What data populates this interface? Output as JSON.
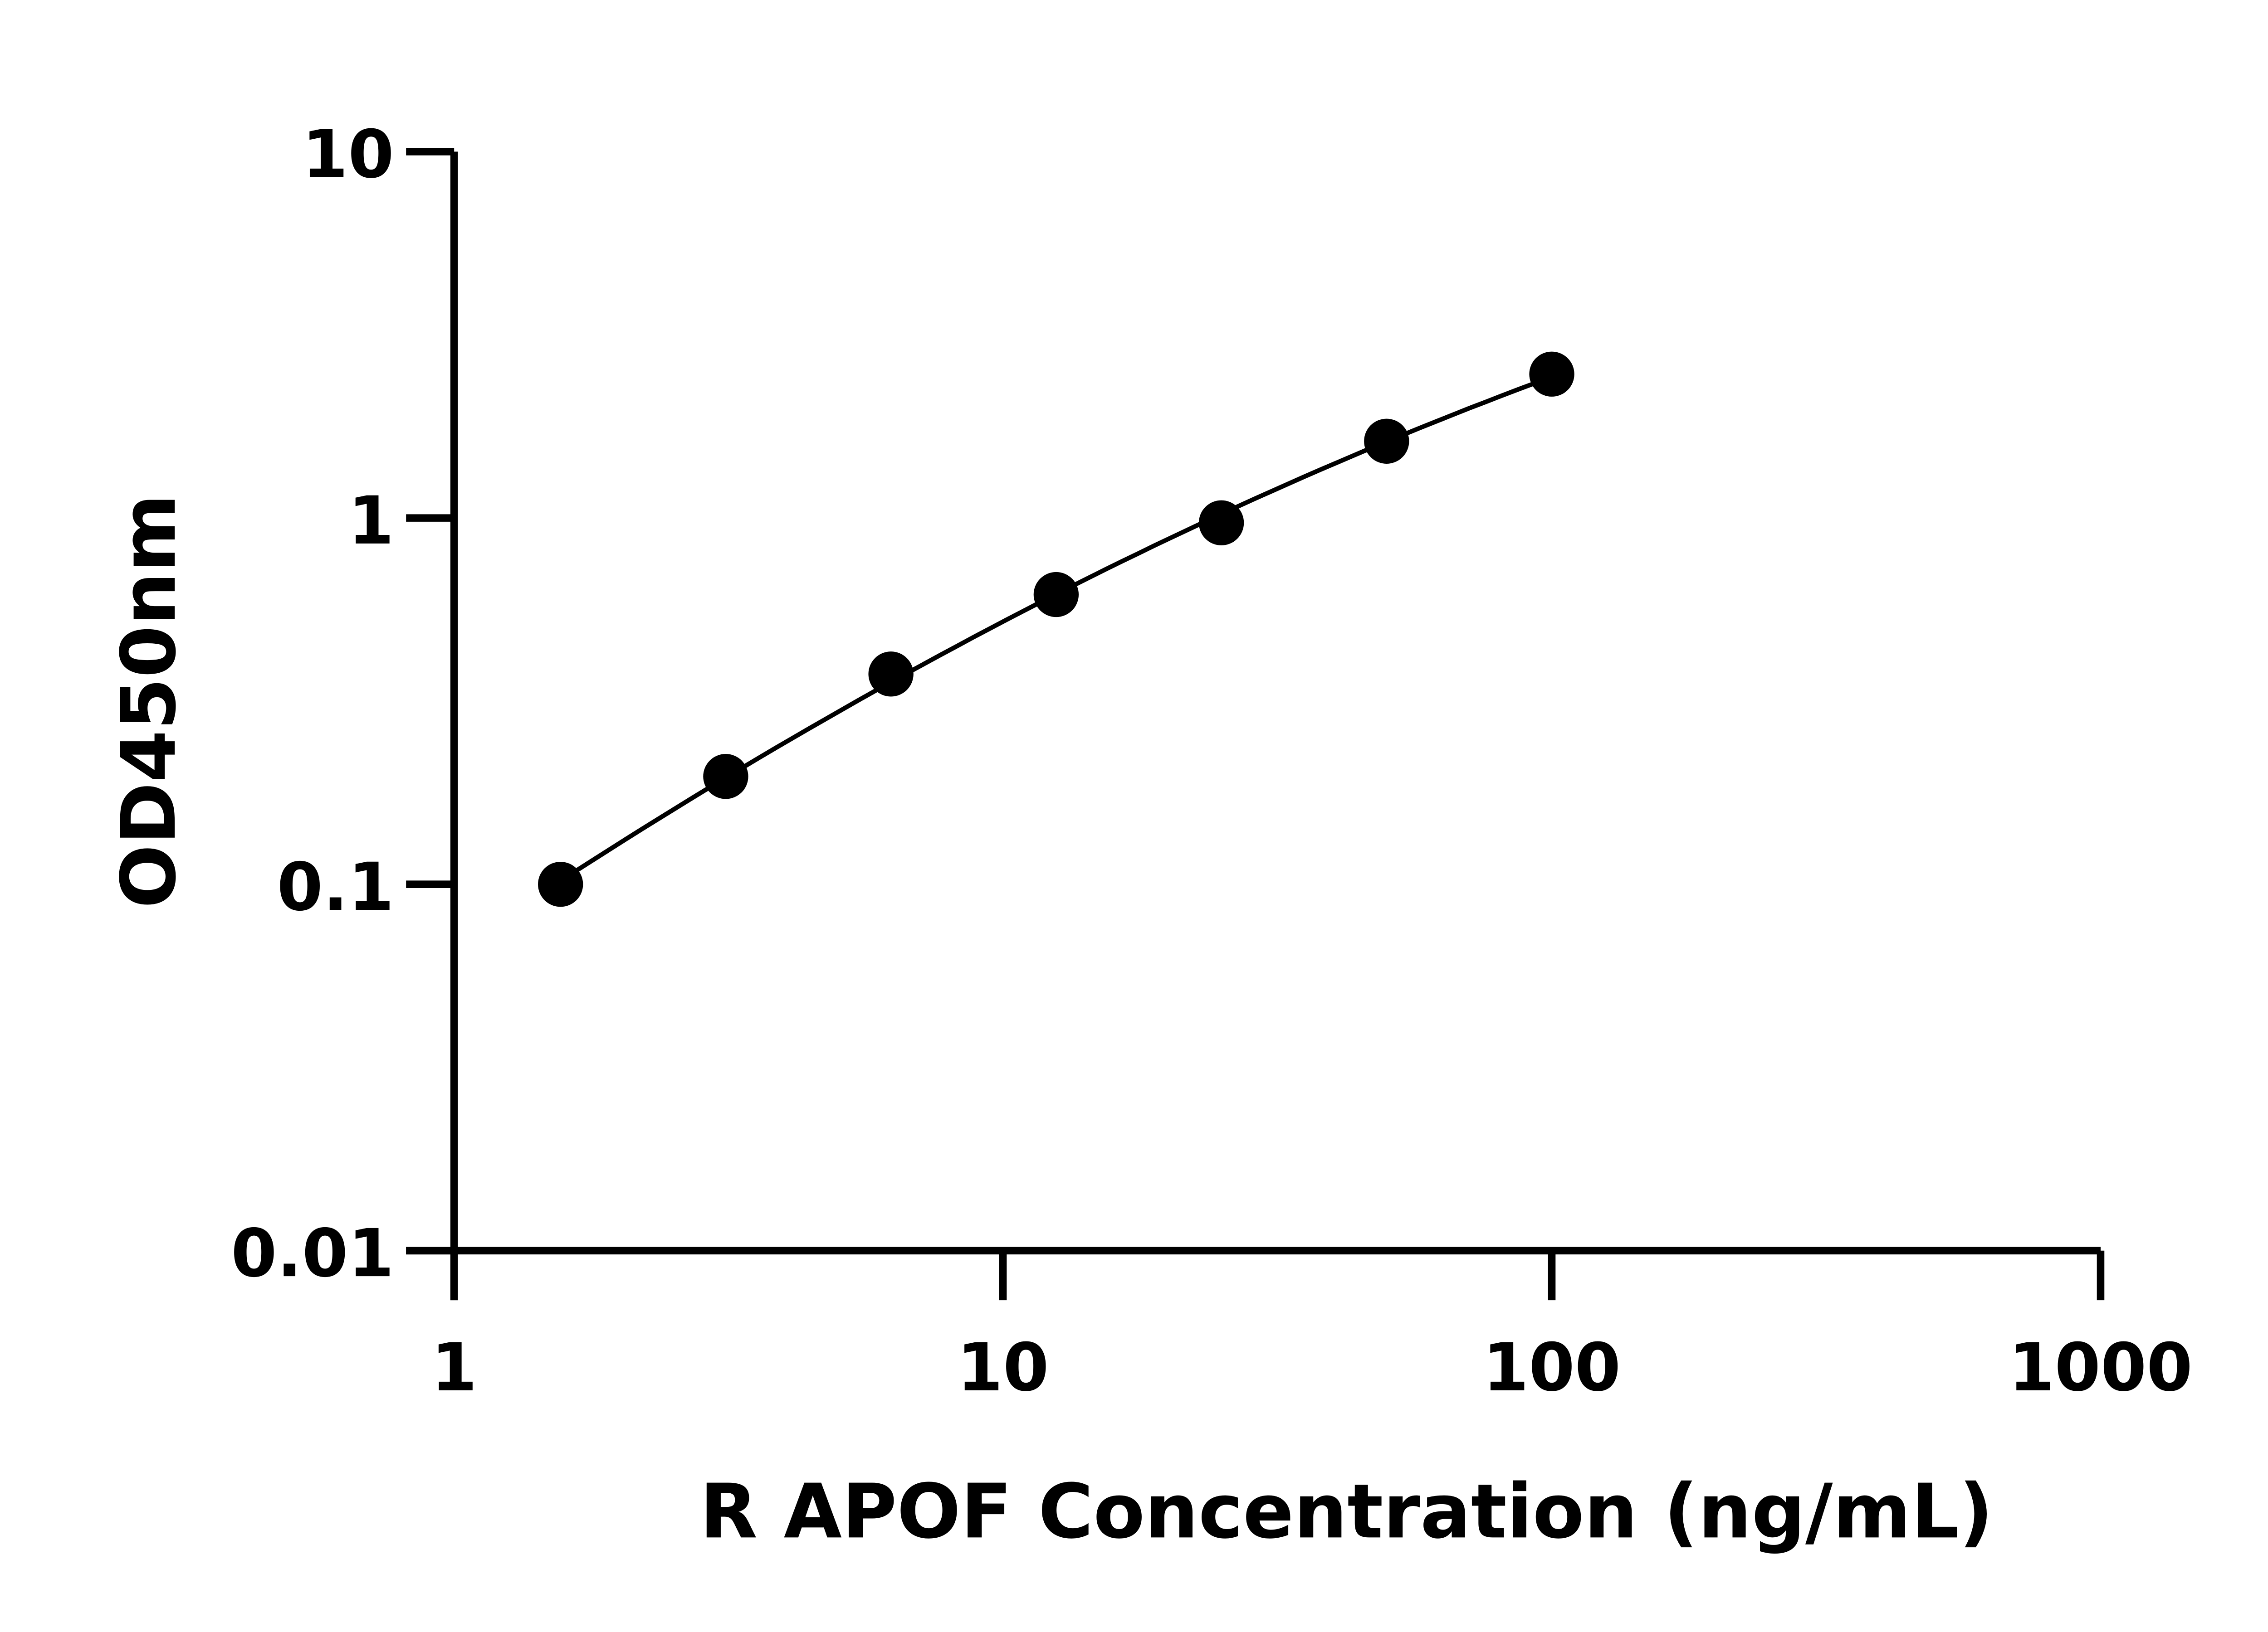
{
  "chart_data": {
    "type": "scatter",
    "title": "",
    "xlabel": "R APOF Concentration (ng/mL)",
    "ylabel": "OD450nm",
    "x_scale": "log",
    "y_scale": "log",
    "xlim": [
      1,
      1000
    ],
    "ylim": [
      0.01,
      10
    ],
    "x_ticks": [
      1,
      10,
      100,
      1000
    ],
    "x_tick_labels": [
      "1",
      "10",
      "100",
      "1000"
    ],
    "y_ticks": [
      0.01,
      0.1,
      1,
      10
    ],
    "y_tick_labels": [
      "0.01",
      "0.1",
      "1",
      "10"
    ],
    "grid": false,
    "legend": "none",
    "has_fit_curve": true,
    "point_color": "#000000",
    "series": [
      {
        "x": [
          1.5625,
          3.125,
          6.25,
          12.5,
          25,
          50,
          100
        ],
        "y": [
          0.1,
          0.197,
          0.375,
          0.618,
          0.97,
          1.62,
          2.47
        ]
      }
    ]
  }
}
